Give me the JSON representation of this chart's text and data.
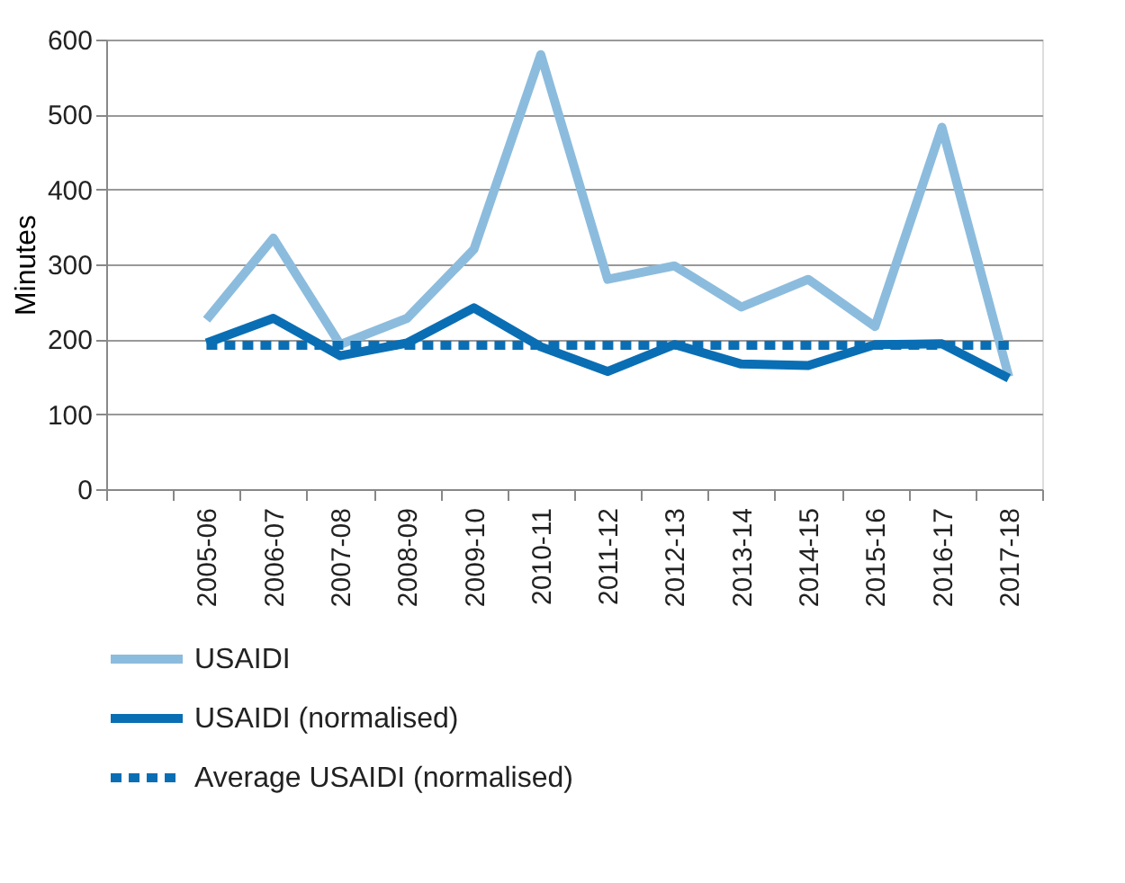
{
  "chart_data": {
    "type": "line",
    "ylabel": "Minutes",
    "categories": [
      null,
      "2005-06",
      "2006-07",
      "2007-08",
      "2008-09",
      "2009-10",
      "2010-11",
      "2011-12",
      "2012-13",
      "2013-14",
      "2014-15",
      "2015-16",
      "2016-17",
      "2017-18"
    ],
    "series": [
      {
        "name": "USAIDI",
        "color": "#8cbcdd",
        "line_style": "solid",
        "values": [
          null,
          226,
          335,
          193,
          228,
          320,
          580,
          280,
          298,
          243,
          280,
          217,
          483,
          150
        ]
      },
      {
        "name": "USAIDI (normalised)",
        "color": "#0a6eb4",
        "line_style": "solid",
        "values": [
          null,
          195,
          228,
          178,
          195,
          242,
          190,
          157,
          193,
          167,
          165,
          193,
          194,
          148
        ]
      },
      {
        "name": "Average USAIDI (normalised)",
        "color": "#0a6eb4",
        "line_style": "dashed",
        "values": [
          null,
          192,
          192,
          192,
          192,
          192,
          192,
          192,
          192,
          192,
          192,
          192,
          192,
          192
        ]
      }
    ],
    "ylim": [
      0,
      600
    ],
    "yticks": [
      0,
      100,
      200,
      300,
      400,
      500,
      600
    ],
    "grid": "y",
    "legend": "bottom",
    "marker": "none"
  }
}
